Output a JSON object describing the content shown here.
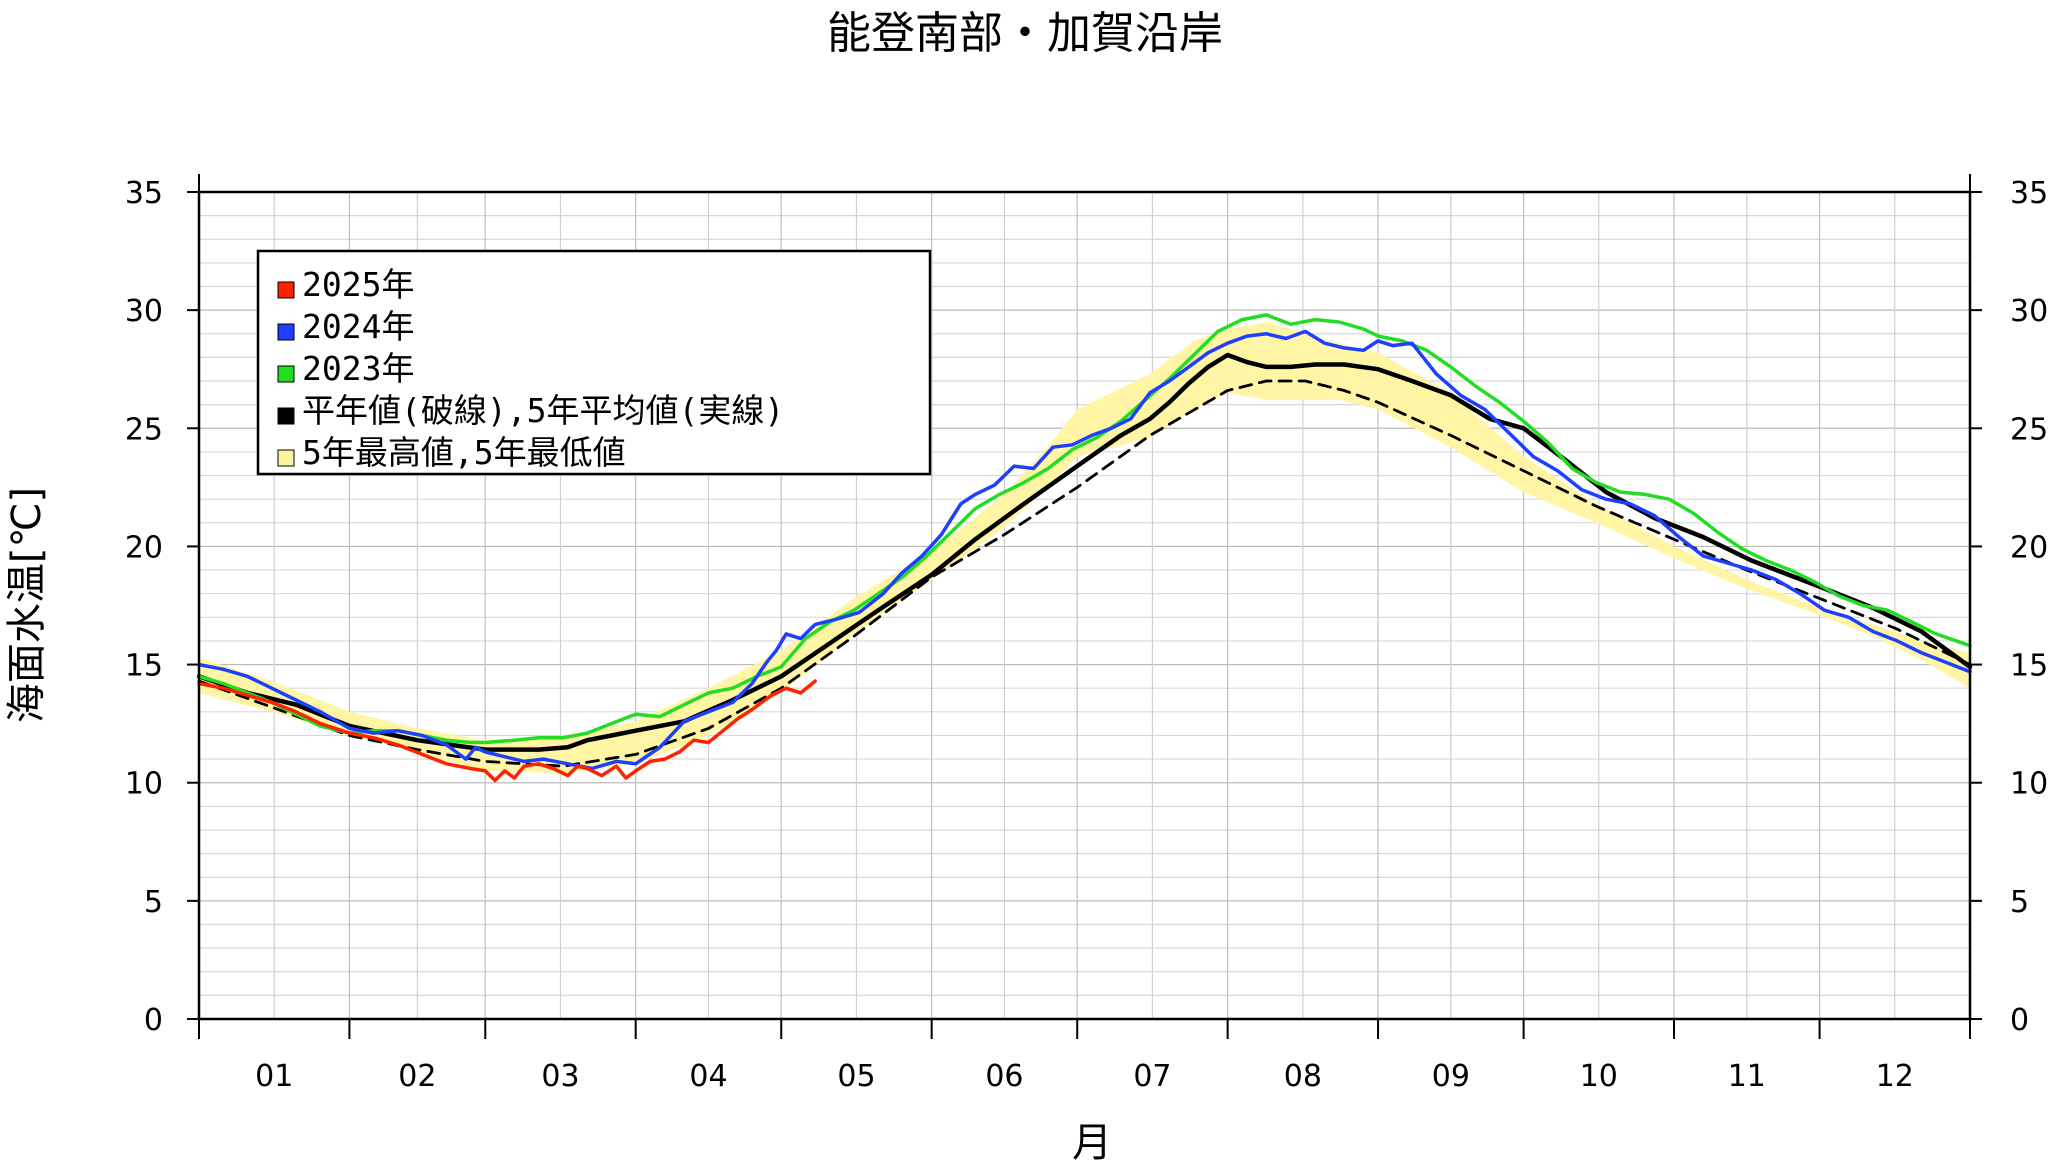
{
  "chart_data": {
    "type": "line",
    "title": "能登南部・加賀沿岸",
    "xlabel": "月",
    "ylabel": "海面水温[℃]",
    "xlim": [
      0,
      365
    ],
    "ylim": [
      0,
      35
    ],
    "yticks": [
      0,
      5,
      10,
      15,
      20,
      25,
      30,
      35
    ],
    "month_labels": [
      "01",
      "02",
      "03",
      "04",
      "05",
      "06",
      "07",
      "08",
      "09",
      "10",
      "11",
      "12"
    ],
    "month_starts": [
      0,
      31,
      59,
      90,
      120,
      151,
      181,
      212,
      243,
      273,
      304,
      334
    ],
    "grid": true,
    "legend_position": "top-left",
    "legend": [
      {
        "label": "2025年",
        "color": "#ff2200"
      },
      {
        "label": "2024年",
        "color": "#1f3fff"
      },
      {
        "label": "2023年",
        "color": "#22dd22"
      },
      {
        "label": "平年値(破線),5年平均値(実線)",
        "color": "#000000"
      },
      {
        "label": "5年最高値,5年最低値",
        "color": "#fff4a0"
      }
    ],
    "band": {
      "name": "5年最高値,5年最低値",
      "color": "#fff4a0",
      "x": [
        0,
        15,
        31,
        45,
        59,
        75,
        90,
        105,
        120,
        135,
        151,
        166,
        176,
        181,
        196,
        205,
        212,
        220,
        228,
        235,
        243,
        258,
        273,
        288,
        304,
        319,
        334,
        345,
        355,
        365
      ],
      "high": [
        15.3,
        14.3,
        13.0,
        12.3,
        11.8,
        11.9,
        12.6,
        14.0,
        15.6,
        17.8,
        19.8,
        22.2,
        24.5,
        25.8,
        27.3,
        28.7,
        29.2,
        29.5,
        29.0,
        28.6,
        28.2,
        26.5,
        23.8,
        21.8,
        20.0,
        18.6,
        17.4,
        16.7,
        16.0,
        15.5
      ],
      "low": [
        13.8,
        13.0,
        12.0,
        11.3,
        10.5,
        10.4,
        10.8,
        12.0,
        13.8,
        16.3,
        18.6,
        20.8,
        22.7,
        23.8,
        24.6,
        25.8,
        26.5,
        26.2,
        26.2,
        26.2,
        25.8,
        24.2,
        22.3,
        21.0,
        19.5,
        18.2,
        17.1,
        16.2,
        15.2,
        14.0
      ]
    },
    "series": [
      {
        "name": "2025年",
        "color": "#ff2200",
        "x": [
          0,
          5,
          10,
          15,
          20,
          25,
          31,
          36,
          41,
          46,
          51,
          56,
          59,
          61,
          63,
          65,
          67,
          70,
          73,
          76,
          78,
          80,
          83,
          86,
          88,
          90,
          93,
          96,
          99,
          102,
          105,
          108,
          111,
          114,
          116,
          118,
          121,
          124,
          127
        ],
        "y": [
          14.2,
          14.0,
          13.7,
          13.4,
          13.0,
          12.5,
          12.1,
          11.9,
          11.6,
          11.2,
          10.8,
          10.6,
          10.5,
          10.1,
          10.5,
          10.2,
          10.7,
          10.8,
          10.6,
          10.3,
          10.7,
          10.6,
          10.3,
          10.7,
          10.2,
          10.5,
          10.9,
          11.0,
          11.3,
          11.8,
          11.7,
          12.2,
          12.7,
          13.1,
          13.4,
          13.7,
          14.0,
          13.8,
          14.3
        ]
      },
      {
        "name": "2024年",
        "color": "#1f3fff",
        "x": [
          0,
          5,
          10,
          15,
          20,
          25,
          31,
          36,
          41,
          46,
          51,
          55,
          57,
          59,
          63,
          67,
          71,
          76,
          81,
          86,
          90,
          95,
          100,
          105,
          110,
          114,
          117,
          119,
          121,
          124,
          127,
          131,
          136,
          141,
          145,
          149,
          153,
          157,
          160,
          164,
          168,
          172,
          176,
          180,
          184,
          188,
          192,
          196,
          200,
          204,
          208,
          212,
          216,
          220,
          224,
          228,
          232,
          236,
          240,
          243,
          246,
          250,
          255,
          260,
          265,
          270,
          275,
          280,
          285,
          290,
          295,
          300,
          305,
          310,
          315,
          320,
          325,
          330,
          335,
          340,
          345,
          350,
          355,
          360,
          365
        ],
        "y": [
          15.0,
          14.8,
          14.5,
          14.0,
          13.5,
          13.0,
          12.3,
          12.1,
          12.2,
          12.0,
          11.6,
          11.0,
          11.5,
          11.3,
          11.1,
          10.9,
          11.0,
          10.8,
          10.6,
          10.9,
          10.8,
          11.5,
          12.6,
          13.0,
          13.4,
          14.2,
          15.1,
          15.6,
          16.3,
          16.1,
          16.7,
          16.9,
          17.2,
          18.0,
          18.9,
          19.6,
          20.5,
          21.8,
          22.2,
          22.6,
          23.4,
          23.3,
          24.2,
          24.3,
          24.7,
          25.0,
          25.4,
          26.5,
          27.0,
          27.6,
          28.2,
          28.6,
          28.9,
          29.0,
          28.8,
          29.1,
          28.6,
          28.4,
          28.3,
          28.7,
          28.5,
          28.6,
          27.3,
          26.4,
          25.8,
          24.8,
          23.8,
          23.2,
          22.4,
          22.0,
          21.8,
          21.3,
          20.4,
          19.6,
          19.3,
          19.0,
          18.6,
          18.0,
          17.3,
          17.0,
          16.4,
          16.0,
          15.5,
          15.1,
          14.7
        ]
      },
      {
        "name": "2023年",
        "color": "#22dd22",
        "x": [
          0,
          5,
          10,
          15,
          20,
          25,
          31,
          36,
          41,
          46,
          51,
          56,
          59,
          65,
          70,
          75,
          80,
          85,
          90,
          95,
          100,
          105,
          110,
          115,
          120,
          125,
          130,
          135,
          140,
          145,
          150,
          155,
          160,
          165,
          170,
          175,
          180,
          185,
          190,
          195,
          200,
          205,
          210,
          215,
          220,
          225,
          230,
          235,
          240,
          243,
          248,
          253,
          258,
          263,
          268,
          273,
          278,
          283,
          288,
          293,
          298,
          303,
          308,
          313,
          318,
          323,
          328,
          333,
          338,
          343,
          348,
          353,
          358,
          365
        ],
        "y": [
          14.5,
          14.2,
          13.8,
          13.4,
          12.9,
          12.4,
          12.1,
          12.2,
          12.2,
          12.0,
          11.8,
          11.7,
          11.7,
          11.8,
          11.9,
          11.9,
          12.1,
          12.5,
          12.9,
          12.8,
          13.3,
          13.8,
          14.0,
          14.5,
          14.9,
          16.1,
          16.8,
          17.3,
          18.0,
          18.7,
          19.6,
          20.6,
          21.6,
          22.2,
          22.7,
          23.3,
          24.1,
          24.6,
          25.3,
          26.2,
          27.1,
          28.1,
          29.1,
          29.6,
          29.8,
          29.4,
          29.6,
          29.5,
          29.2,
          28.9,
          28.7,
          28.3,
          27.6,
          26.8,
          26.1,
          25.3,
          24.4,
          23.3,
          22.7,
          22.3,
          22.2,
          22.0,
          21.4,
          20.6,
          19.9,
          19.4,
          19.0,
          18.5,
          17.9,
          17.5,
          17.3,
          16.8,
          16.3,
          15.8
        ]
      },
      {
        "name": "5年平均値",
        "color": "#000000",
        "dash": false,
        "x": [
          0,
          10,
          20,
          31,
          45,
          59,
          70,
          76,
          80,
          85,
          90,
          100,
          110,
          120,
          130,
          140,
          151,
          160,
          170,
          181,
          190,
          196,
          200,
          204,
          208,
          212,
          216,
          220,
          225,
          230,
          236,
          243,
          250,
          258,
          266,
          273,
          282,
          290,
          300,
          310,
          320,
          334,
          345,
          355,
          365
        ],
        "y": [
          14.5,
          13.8,
          13.3,
          12.4,
          11.8,
          11.4,
          11.4,
          11.5,
          11.8,
          12.0,
          12.2,
          12.6,
          13.5,
          14.5,
          15.9,
          17.3,
          18.8,
          20.3,
          21.8,
          23.4,
          24.7,
          25.4,
          26.1,
          26.9,
          27.6,
          28.1,
          27.8,
          27.6,
          27.6,
          27.7,
          27.7,
          27.5,
          27.0,
          26.4,
          25.4,
          25.0,
          23.6,
          22.3,
          21.2,
          20.4,
          19.4,
          18.3,
          17.4,
          16.4,
          14.9
        ]
      },
      {
        "name": "平年値",
        "color": "#000000",
        "dash": true,
        "x": [
          0,
          15,
          31,
          45,
          59,
          75,
          90,
          105,
          120,
          135,
          151,
          166,
          181,
          196,
          212,
          220,
          228,
          236,
          243,
          258,
          273,
          288,
          304,
          319,
          334,
          350,
          365
        ],
        "y": [
          14.3,
          13.2,
          12.0,
          11.4,
          10.9,
          10.7,
          11.2,
          12.3,
          14.0,
          16.2,
          18.7,
          20.5,
          22.5,
          24.7,
          26.6,
          27.0,
          27.0,
          26.6,
          26.1,
          24.7,
          23.2,
          21.7,
          20.3,
          19.0,
          17.8,
          16.5,
          15.0
        ]
      }
    ]
  }
}
